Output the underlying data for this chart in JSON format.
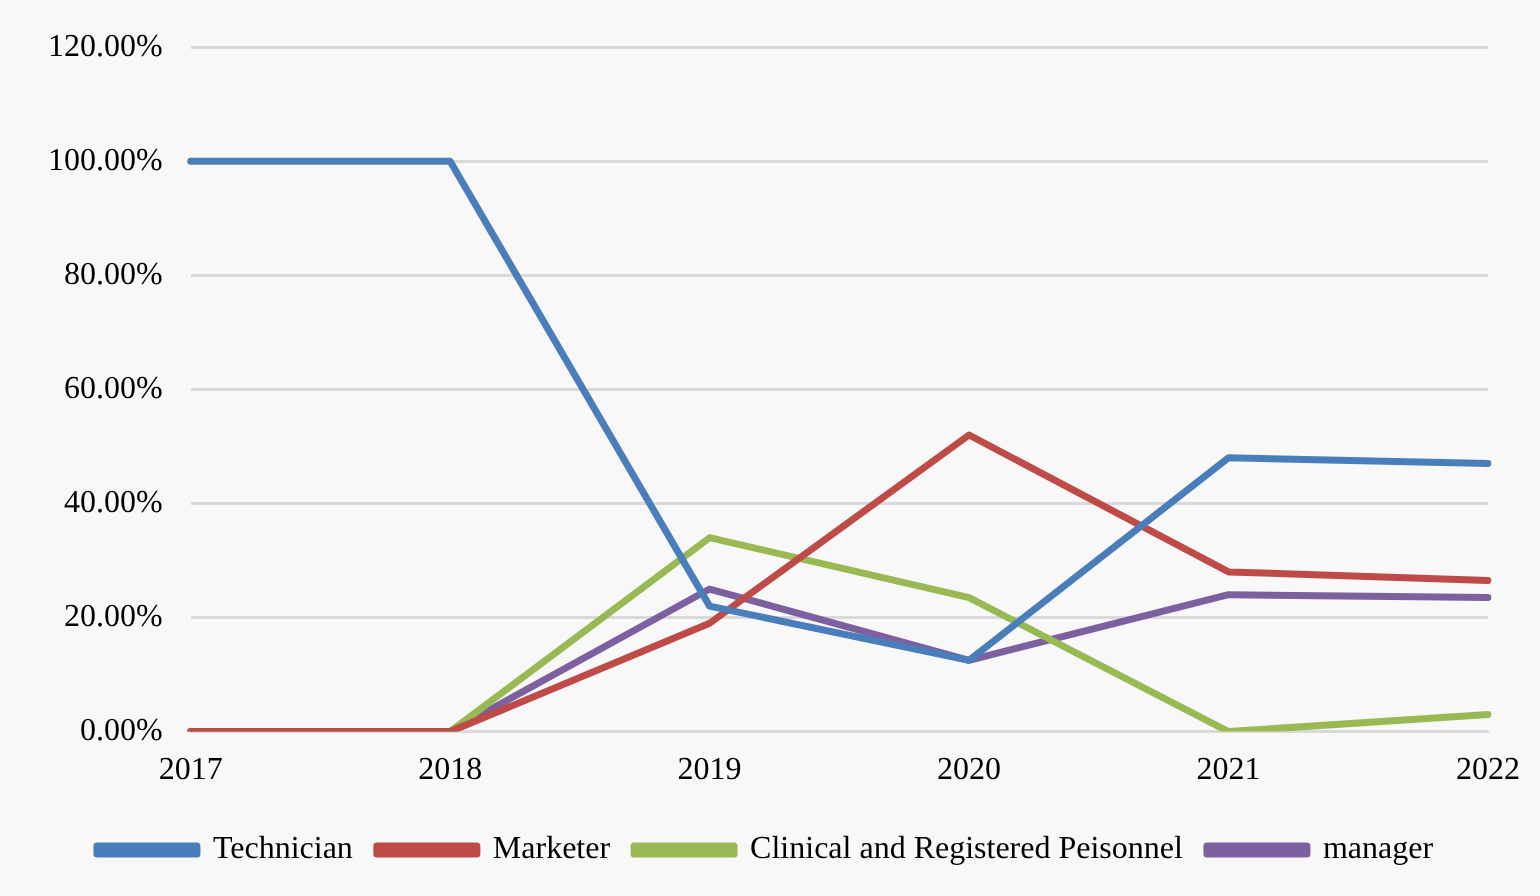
{
  "chart_data": {
    "type": "line",
    "categories": [
      "2017",
      "2018",
      "2019",
      "2020",
      "2021",
      "2022"
    ],
    "series": [
      {
        "name": "Technician",
        "color": "#4a7ebb",
        "values": [
          100,
          100,
          22,
          12.5,
          48,
          47
        ]
      },
      {
        "name": "Marketer",
        "color": "#be4b48",
        "values": [
          0,
          0,
          19,
          52,
          28,
          26.5
        ]
      },
      {
        "name": "Clinical and Registered Peisonnel",
        "color": "#98b954",
        "values": [
          0,
          0,
          34,
          23.5,
          0,
          3
        ]
      },
      {
        "name": "manager",
        "color": "#7d60a0",
        "values": [
          0,
          0,
          25,
          12.5,
          24,
          23.5
        ]
      }
    ],
    "ylim": [
      0,
      120
    ],
    "yticks": [
      {
        "value": 0,
        "label": "0.00%"
      },
      {
        "value": 20,
        "label": "20.00%"
      },
      {
        "value": 40,
        "label": "40.00%"
      },
      {
        "value": 60,
        "label": "60.00%"
      },
      {
        "value": 80,
        "label": "80.00%"
      },
      {
        "value": 100,
        "label": "100.00%"
      },
      {
        "value": 120,
        "label": "120.00%"
      }
    ],
    "grid": "y",
    "legend": "bottom",
    "marker": "none",
    "line_style": "solid"
  }
}
